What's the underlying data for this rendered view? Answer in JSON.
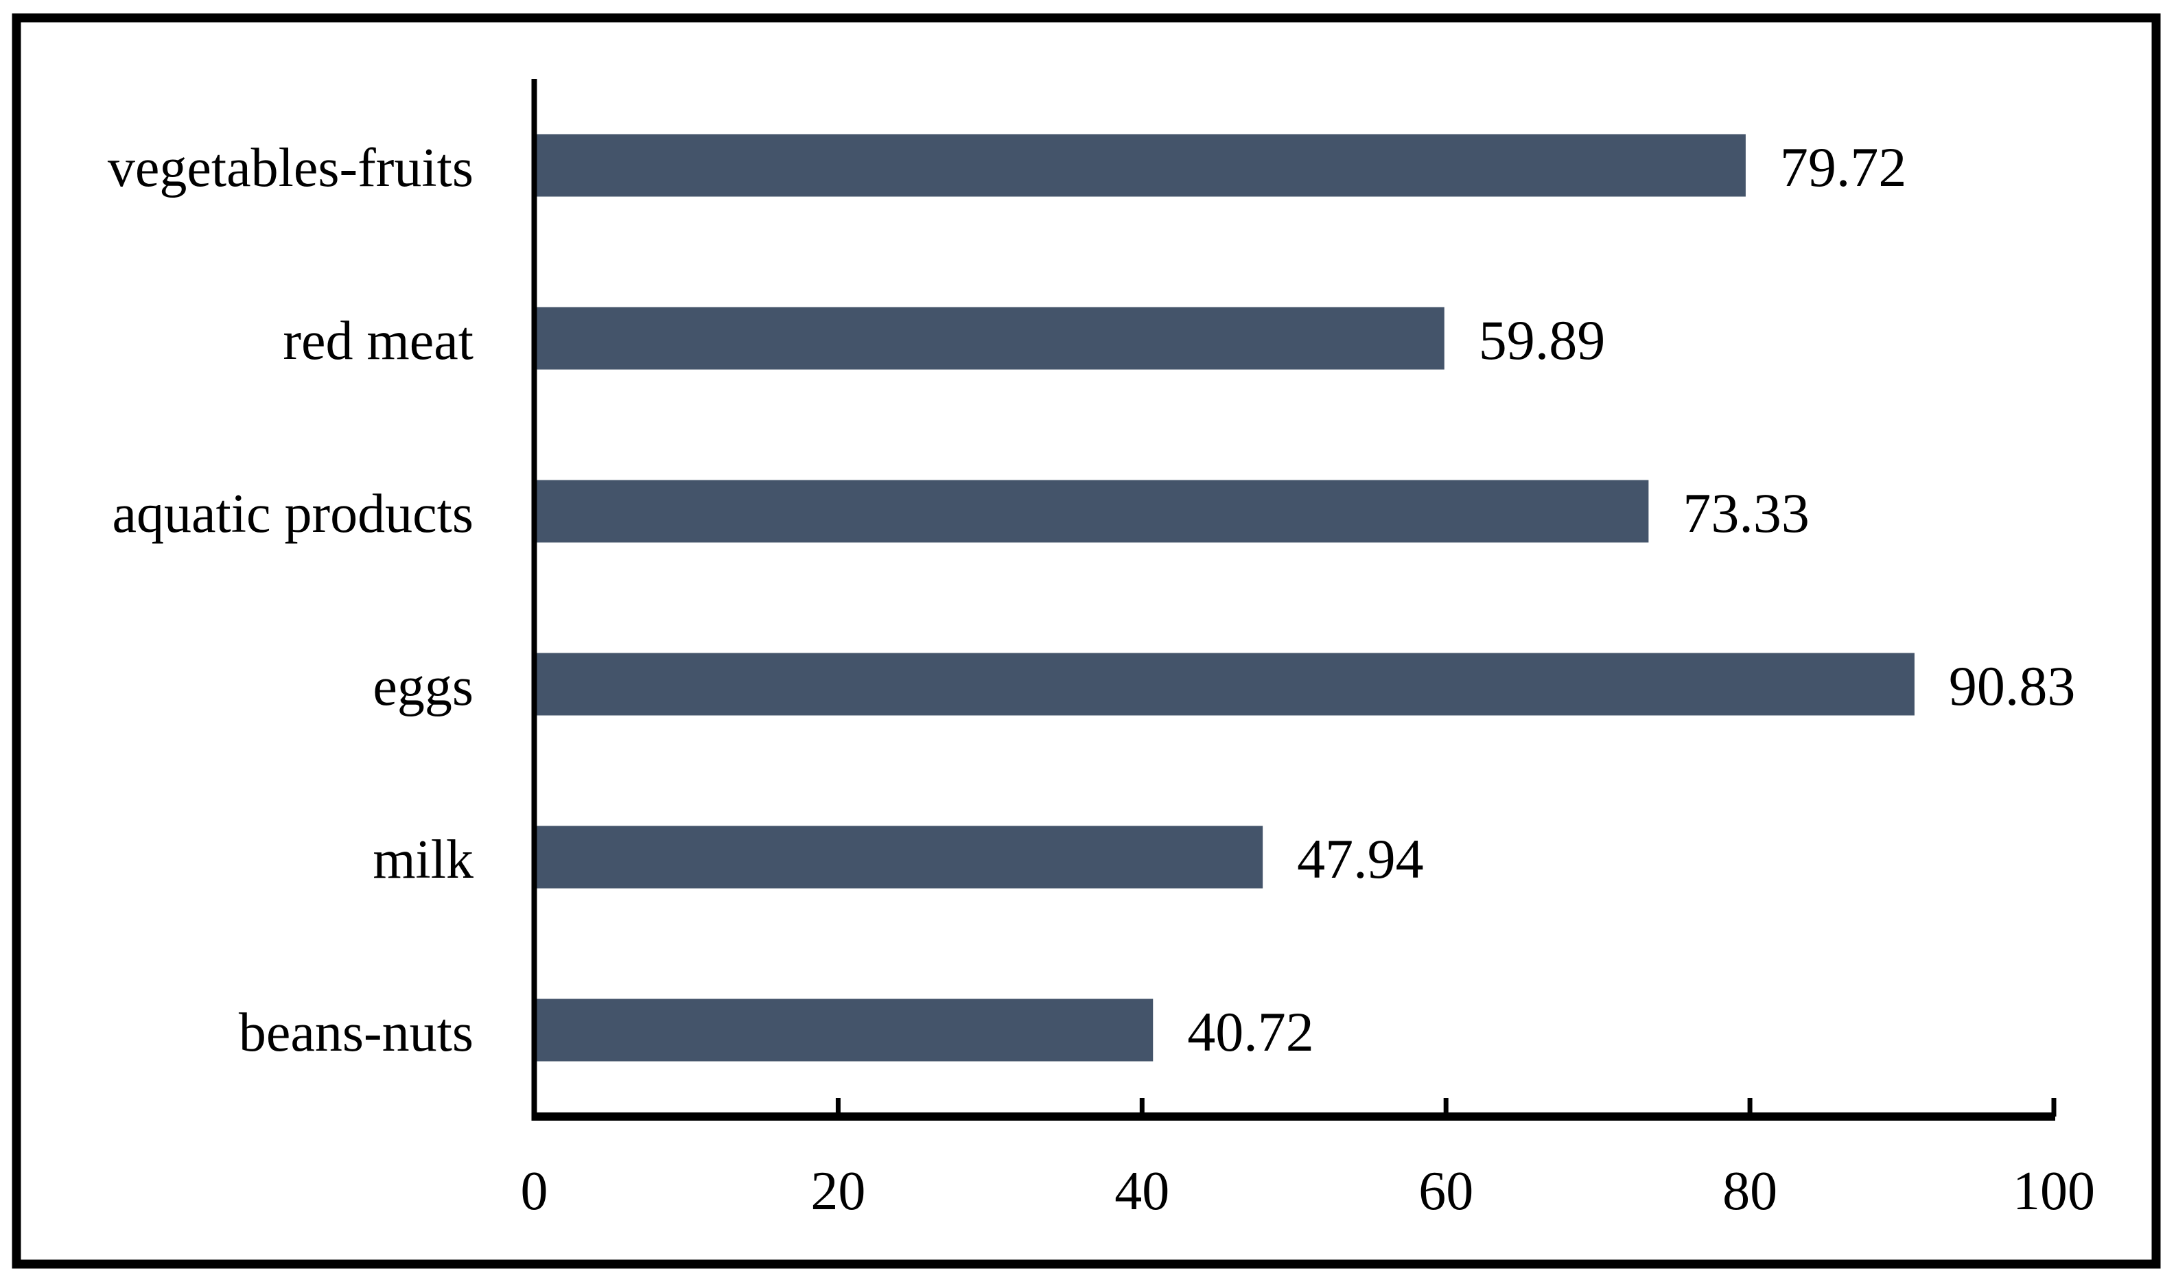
{
  "figure": {
    "background": "#ffffff",
    "border_color": "#000000",
    "axis_color": "#000000"
  },
  "chart_data": {
    "type": "bar",
    "orientation": "horizontal",
    "title": "",
    "xlabel": "",
    "ylabel": "",
    "categories": [
      "vegetables-fruits",
      "red meat",
      "aquatic products",
      "eggs",
      "milk",
      "beans-nuts"
    ],
    "values": [
      79.72,
      59.89,
      73.33,
      90.83,
      47.94,
      40.72
    ],
    "value_labels": [
      "79.72",
      "59.89",
      "73.33",
      "90.83",
      "47.94",
      "40.72"
    ],
    "xlim": [
      0,
      100
    ],
    "xticks": [
      0,
      20,
      40,
      60,
      80,
      100
    ],
    "xtick_labels": [
      "0",
      "20",
      "40",
      "60",
      "80",
      "100"
    ],
    "bar_color": "#44546A",
    "text_color": "#000000",
    "grid": false,
    "legend": null
  }
}
